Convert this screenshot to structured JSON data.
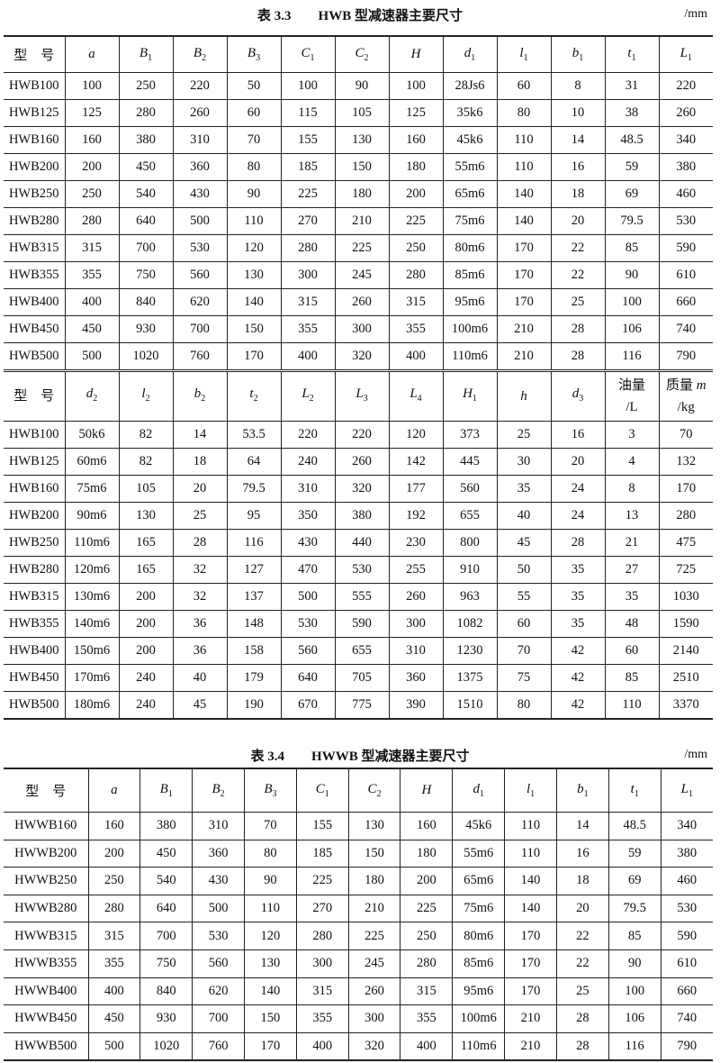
{
  "table1": {
    "title": "表 3.3　　HWB 型减速器主要尺寸",
    "unit": "/mm",
    "header1": [
      {
        "t": "型　号"
      },
      {
        "v": "a"
      },
      {
        "v": "B",
        "s": "1"
      },
      {
        "v": "B",
        "s": "2"
      },
      {
        "v": "B",
        "s": "3"
      },
      {
        "v": "C",
        "s": "1"
      },
      {
        "v": "C",
        "s": "2"
      },
      {
        "v": "H"
      },
      {
        "v": "d",
        "s": "1"
      },
      {
        "v": "l",
        "s": "1"
      },
      {
        "v": "b",
        "s": "1"
      },
      {
        "v": "t",
        "s": "1"
      },
      {
        "v": "L",
        "s": "1"
      }
    ],
    "rows1": [
      [
        "HWB100",
        "100",
        "250",
        "220",
        "50",
        "100",
        "90",
        "100",
        "28Js6",
        "60",
        "8",
        "31",
        "220"
      ],
      [
        "HWB125",
        "125",
        "280",
        "260",
        "60",
        "115",
        "105",
        "125",
        "35k6",
        "80",
        "10",
        "38",
        "260"
      ],
      [
        "HWB160",
        "160",
        "380",
        "310",
        "70",
        "155",
        "130",
        "160",
        "45k6",
        "110",
        "14",
        "48.5",
        "340"
      ],
      [
        "HWB200",
        "200",
        "450",
        "360",
        "80",
        "185",
        "150",
        "180",
        "55m6",
        "110",
        "16",
        "59",
        "380"
      ],
      [
        "HWB250",
        "250",
        "540",
        "430",
        "90",
        "225",
        "180",
        "200",
        "65m6",
        "140",
        "18",
        "69",
        "460"
      ],
      [
        "HWB280",
        "280",
        "640",
        "500",
        "110",
        "270",
        "210",
        "225",
        "75m6",
        "140",
        "20",
        "79.5",
        "530"
      ],
      [
        "HWB315",
        "315",
        "700",
        "530",
        "120",
        "280",
        "225",
        "250",
        "80m6",
        "170",
        "22",
        "85",
        "590"
      ],
      [
        "HWB355",
        "355",
        "750",
        "560",
        "130",
        "300",
        "245",
        "280",
        "85m6",
        "170",
        "22",
        "90",
        "610"
      ],
      [
        "HWB400",
        "400",
        "840",
        "620",
        "140",
        "315",
        "260",
        "315",
        "95m6",
        "170",
        "25",
        "100",
        "660"
      ],
      [
        "HWB450",
        "450",
        "930",
        "700",
        "150",
        "355",
        "300",
        "355",
        "100m6",
        "210",
        "28",
        "106",
        "740"
      ],
      [
        "HWB500",
        "500",
        "1020",
        "760",
        "170",
        "400",
        "320",
        "400",
        "110m6",
        "210",
        "28",
        "116",
        "790"
      ]
    ],
    "header2": [
      {
        "t": "型　号"
      },
      {
        "v": "d",
        "s": "2"
      },
      {
        "v": "l",
        "s": "2"
      },
      {
        "v": "b",
        "s": "2"
      },
      {
        "v": "t",
        "s": "2"
      },
      {
        "v": "L",
        "s": "2"
      },
      {
        "v": "L",
        "s": "3"
      },
      {
        "v": "L",
        "s": "4"
      },
      {
        "v": "H",
        "s": "1"
      },
      {
        "v": "h"
      },
      {
        "v": "d",
        "s": "3"
      },
      {
        "t": "油量",
        "t2": "/L"
      },
      {
        "t": "质量 ",
        "m": "m",
        "t2": "/kg"
      }
    ],
    "rows2": [
      [
        "HWB100",
        "50k6",
        "82",
        "14",
        "53.5",
        "220",
        "220",
        "120",
        "373",
        "25",
        "16",
        "3",
        "70"
      ],
      [
        "HWB125",
        "60m6",
        "82",
        "18",
        "64",
        "240",
        "260",
        "142",
        "445",
        "30",
        "20",
        "4",
        "132"
      ],
      [
        "HWB160",
        "75m6",
        "105",
        "20",
        "79.5",
        "310",
        "320",
        "177",
        "560",
        "35",
        "24",
        "8",
        "170"
      ],
      [
        "HWB200",
        "90m6",
        "130",
        "25",
        "95",
        "350",
        "380",
        "192",
        "655",
        "40",
        "24",
        "13",
        "280"
      ],
      [
        "HWB250",
        "110m6",
        "165",
        "28",
        "116",
        "430",
        "440",
        "230",
        "800",
        "45",
        "28",
        "21",
        "475"
      ],
      [
        "HWB280",
        "120m6",
        "165",
        "32",
        "127",
        "470",
        "530",
        "255",
        "910",
        "50",
        "35",
        "27",
        "725"
      ],
      [
        "HWB315",
        "130m6",
        "200",
        "32",
        "137",
        "500",
        "555",
        "260",
        "963",
        "55",
        "35",
        "35",
        "1030"
      ],
      [
        "HWB355",
        "140m6",
        "200",
        "36",
        "148",
        "530",
        "590",
        "300",
        "1082",
        "60",
        "35",
        "48",
        "1590"
      ],
      [
        "HWB400",
        "150m6",
        "200",
        "36",
        "158",
        "560",
        "655",
        "310",
        "1230",
        "70",
        "42",
        "60",
        "2140"
      ],
      [
        "HWB450",
        "170m6",
        "240",
        "40",
        "179",
        "640",
        "705",
        "360",
        "1375",
        "75",
        "42",
        "85",
        "2510"
      ],
      [
        "HWB500",
        "180m6",
        "240",
        "45",
        "190",
        "670",
        "775",
        "390",
        "1510",
        "80",
        "42",
        "110",
        "3370"
      ]
    ]
  },
  "table2": {
    "title": "表 3.4　　HWWB 型减速器主要尺寸",
    "unit": "/mm",
    "header": [
      {
        "t": "型　号"
      },
      {
        "v": "a"
      },
      {
        "v": "B",
        "s": "1"
      },
      {
        "v": "B",
        "s": "2"
      },
      {
        "v": "B",
        "s": "3"
      },
      {
        "v": "C",
        "s": "1"
      },
      {
        "v": "C",
        "s": "2"
      },
      {
        "v": "H"
      },
      {
        "v": "d",
        "s": "1"
      },
      {
        "v": "l",
        "s": "1"
      },
      {
        "v": "b",
        "s": "1"
      },
      {
        "v": "t",
        "s": "1"
      },
      {
        "v": "L",
        "s": "1"
      }
    ],
    "rows": [
      [
        "HWWB160",
        "160",
        "380",
        "310",
        "70",
        "155",
        "130",
        "160",
        "45k6",
        "110",
        "14",
        "48.5",
        "340"
      ],
      [
        "HWWB200",
        "200",
        "450",
        "360",
        "80",
        "185",
        "150",
        "180",
        "55m6",
        "110",
        "16",
        "59",
        "380"
      ],
      [
        "HWWB250",
        "250",
        "540",
        "430",
        "90",
        "225",
        "180",
        "200",
        "65m6",
        "140",
        "18",
        "69",
        "460"
      ],
      [
        "HWWB280",
        "280",
        "640",
        "500",
        "110",
        "270",
        "210",
        "225",
        "75m6",
        "140",
        "20",
        "79.5",
        "530"
      ],
      [
        "HWWB315",
        "315",
        "700",
        "530",
        "120",
        "280",
        "225",
        "250",
        "80m6",
        "170",
        "22",
        "85",
        "590"
      ],
      [
        "HWWB355",
        "355",
        "750",
        "560",
        "130",
        "300",
        "245",
        "280",
        "85m6",
        "170",
        "22",
        "90",
        "610"
      ],
      [
        "HWWB400",
        "400",
        "840",
        "620",
        "140",
        "315",
        "260",
        "315",
        "95m6",
        "170",
        "25",
        "100",
        "660"
      ],
      [
        "HWWB450",
        "450",
        "930",
        "700",
        "150",
        "355",
        "300",
        "355",
        "100m6",
        "210",
        "28",
        "106",
        "740"
      ],
      [
        "HWWB500",
        "500",
        "1020",
        "760",
        "170",
        "400",
        "320",
        "400",
        "110m6",
        "210",
        "28",
        "116",
        "790"
      ]
    ]
  }
}
